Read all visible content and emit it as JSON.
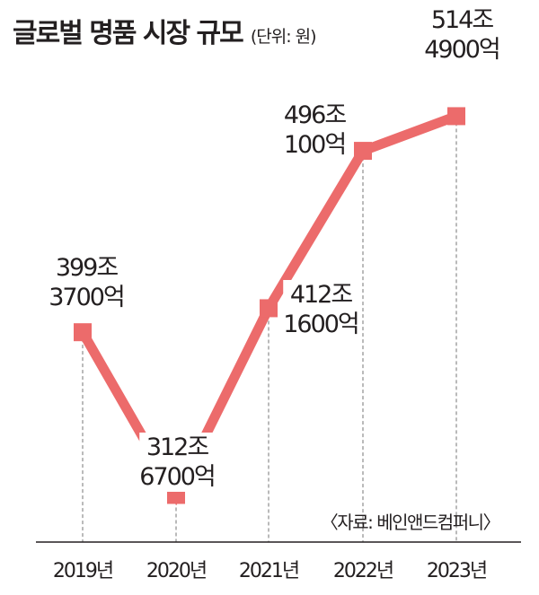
{
  "title": "글로벌 명품 시장 규모",
  "unit": "(단위: 원)",
  "source": "〈자료: 베인앤드컴퍼니〉",
  "colors": {
    "line": "#ec6b6b",
    "text": "#231f20",
    "grid": "#8c8c8c"
  },
  "chart_data": {
    "type": "line",
    "title": "글로벌 명품 시장 규모",
    "categories": [
      "2019년",
      "2020년",
      "2021년",
      "2022년",
      "2023년"
    ],
    "values": [
      399.37,
      312.67,
      412.16,
      496.01,
      514.49
    ],
    "data_labels": [
      [
        "399조",
        "3700억"
      ],
      [
        "312조",
        "6700억"
      ],
      [
        "412조",
        "1600억"
      ],
      [
        "496조",
        "100억"
      ],
      [
        "514조",
        "4900억"
      ]
    ],
    "ylim": [
      300,
      530
    ],
    "grid": false
  }
}
